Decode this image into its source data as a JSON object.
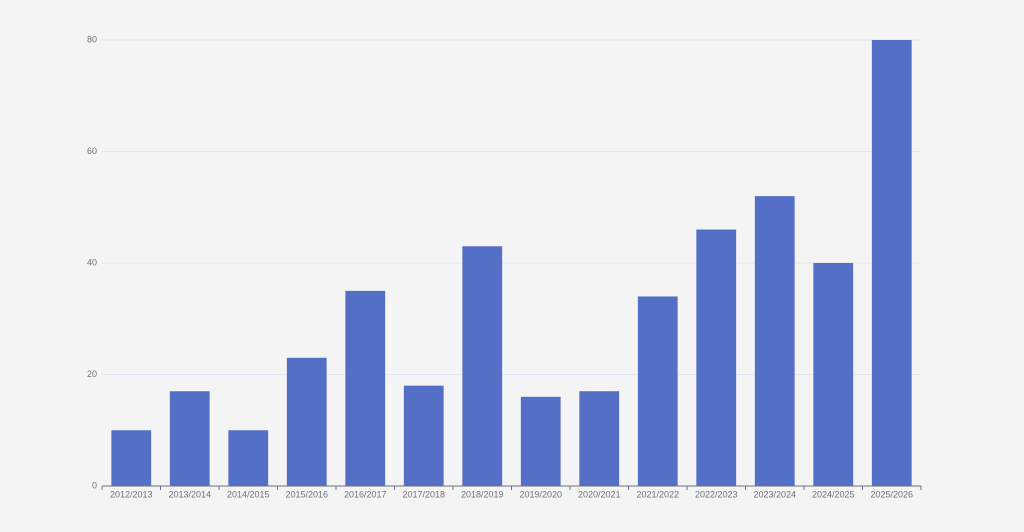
{
  "chart_data": {
    "type": "bar",
    "categories": [
      "2012/2013",
      "2013/2014",
      "2014/2015",
      "2015/2016",
      "2016/2017",
      "2017/2018",
      "2018/2019",
      "2019/2020",
      "2020/2021",
      "2021/2022",
      "2022/2023",
      "2023/2024",
      "2024/2025",
      "2025/2026"
    ],
    "values": [
      10,
      17,
      10,
      23,
      35,
      18,
      43,
      16,
      17,
      34,
      46,
      52,
      40,
      80
    ],
    "color": "#5470c6",
    "ylim": [
      0,
      80
    ],
    "yticks": [
      0,
      20,
      40,
      60,
      80
    ],
    "grid": true
  }
}
